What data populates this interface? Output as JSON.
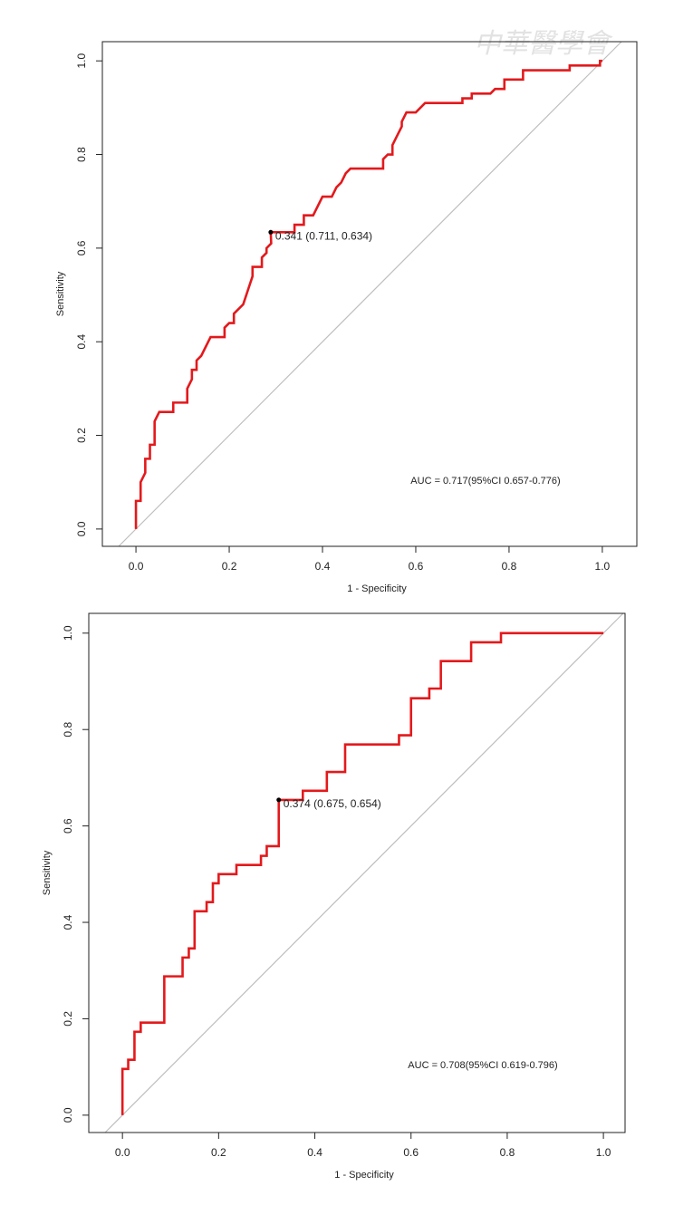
{
  "watermark": "中華醫學會",
  "chart_data": [
    {
      "type": "line",
      "x_label": "1 - Specificity",
      "y_label": "Sensitivity",
      "xlim": [
        -0.072,
        1.074
      ],
      "ylim": [
        -0.037,
        1.041
      ],
      "xticks": [
        {
          "value": 0,
          "label": "0.0"
        },
        0.2,
        0.4,
        0.6,
        0.8,
        {
          "value": 1,
          "label": "1.0"
        }
      ],
      "yticks": [
        {
          "value": 0,
          "label": "0.0"
        },
        0.2,
        0.4,
        0.6,
        0.8,
        {
          "value": 1,
          "label": "1.0"
        }
      ],
      "color": "#e3191c",
      "reference_line_color": "#bebebe",
      "x": [
        0,
        0,
        0.01,
        0.01,
        0.02,
        0.02,
        0.03,
        0.03,
        0.04,
        0.04,
        0.05,
        0.08,
        0.08,
        0.11,
        0.11,
        0.12,
        0.12,
        0.13,
        0.13,
        0.14,
        0.15,
        0.16,
        0.19,
        0.19,
        0.2,
        0.21,
        0.21,
        0.22,
        0.23,
        0.24,
        0.25,
        0.25,
        0.27,
        0.27,
        0.28,
        0.28,
        0.29,
        0.289,
        0.34,
        0.34,
        0.36,
        0.36,
        0.38,
        0.39,
        0.4,
        0.42,
        0.43,
        0.44,
        0.45,
        0.46,
        0.53,
        0.53,
        0.54,
        0.55,
        0.55,
        0.56,
        0.57,
        0.57,
        0.58,
        0.6,
        0.62,
        0.7,
        0.7,
        0.72,
        0.72,
        0.76,
        0.77,
        0.79,
        0.79,
        0.83,
        0.83,
        0.93,
        0.93,
        0.995,
        0.995,
        1
      ],
      "values": [
        0,
        0.06,
        0.06,
        0.1,
        0.12,
        0.15,
        0.15,
        0.18,
        0.18,
        0.23,
        0.25,
        0.25,
        0.27,
        0.27,
        0.3,
        0.32,
        0.34,
        0.34,
        0.36,
        0.37,
        0.39,
        0.41,
        0.41,
        0.43,
        0.44,
        0.44,
        0.46,
        0.47,
        0.48,
        0.51,
        0.54,
        0.56,
        0.56,
        0.58,
        0.59,
        0.6,
        0.61,
        0.634,
        0.634,
        0.65,
        0.65,
        0.67,
        0.67,
        0.69,
        0.71,
        0.71,
        0.73,
        0.74,
        0.76,
        0.77,
        0.77,
        0.79,
        0.8,
        0.8,
        0.82,
        0.84,
        0.86,
        0.87,
        0.89,
        0.89,
        0.91,
        0.91,
        0.92,
        0.92,
        0.93,
        0.93,
        0.94,
        0.94,
        0.96,
        0.96,
        0.98,
        0.98,
        0.99,
        0.99,
        1,
        1
      ],
      "marker": {
        "x": 0.289,
        "y": 0.634,
        "label": "0.341 (0.711, 0.634)"
      },
      "annotation": "AUC = 0.717(95%CI 0.657-0.776)"
    },
    {
      "type": "line",
      "x_label": "1 - Specificity",
      "y_label": "Sensitivity",
      "xlim": [
        -0.07,
        1.045
      ],
      "ylim": [
        -0.036,
        1.041
      ],
      "xticks": [
        {
          "value": 0,
          "label": "0.0"
        },
        0.2,
        0.4,
        0.6,
        0.8,
        {
          "value": 1,
          "label": "1.0"
        }
      ],
      "yticks": [
        {
          "value": 0,
          "label": "0.0"
        },
        0.2,
        0.4,
        0.6,
        0.8,
        {
          "value": 1,
          "label": "1.0"
        }
      ],
      "color": "#e3191c",
      "reference_line_color": "#bebebe",
      "x": [
        0,
        0,
        0.012,
        0.012,
        0.025,
        0.025,
        0.038,
        0.038,
        0.087,
        0.087,
        0.125,
        0.125,
        0.138,
        0.138,
        0.15,
        0.15,
        0.175,
        0.175,
        0.188,
        0.188,
        0.2,
        0.2,
        0.237,
        0.237,
        0.288,
        0.288,
        0.3,
        0.3,
        0.325,
        0.325,
        0.375,
        0.375,
        0.425,
        0.425,
        0.463,
        0.463,
        0.575,
        0.575,
        0.6,
        0.6,
        0.638,
        0.638,
        0.662,
        0.662,
        0.725,
        0.725,
        0.787,
        0.787,
        1
      ],
      "values": [
        0,
        0.096,
        0.096,
        0.115,
        0.115,
        0.173,
        0.173,
        0.192,
        0.192,
        0.288,
        0.288,
        0.327,
        0.327,
        0.346,
        0.346,
        0.423,
        0.423,
        0.442,
        0.442,
        0.481,
        0.481,
        0.5,
        0.5,
        0.519,
        0.519,
        0.538,
        0.538,
        0.558,
        0.558,
        0.654,
        0.654,
        0.673,
        0.673,
        0.712,
        0.712,
        0.769,
        0.769,
        0.788,
        0.788,
        0.865,
        0.865,
        0.885,
        0.885,
        0.942,
        0.942,
        0.981,
        0.981,
        1,
        1
      ],
      "marker": {
        "x": 0.325,
        "y": 0.654,
        "label": "0.374 (0.675, 0.654)"
      },
      "annotation": "AUC = 0.708(95%CI 0.619-0.796)"
    }
  ]
}
